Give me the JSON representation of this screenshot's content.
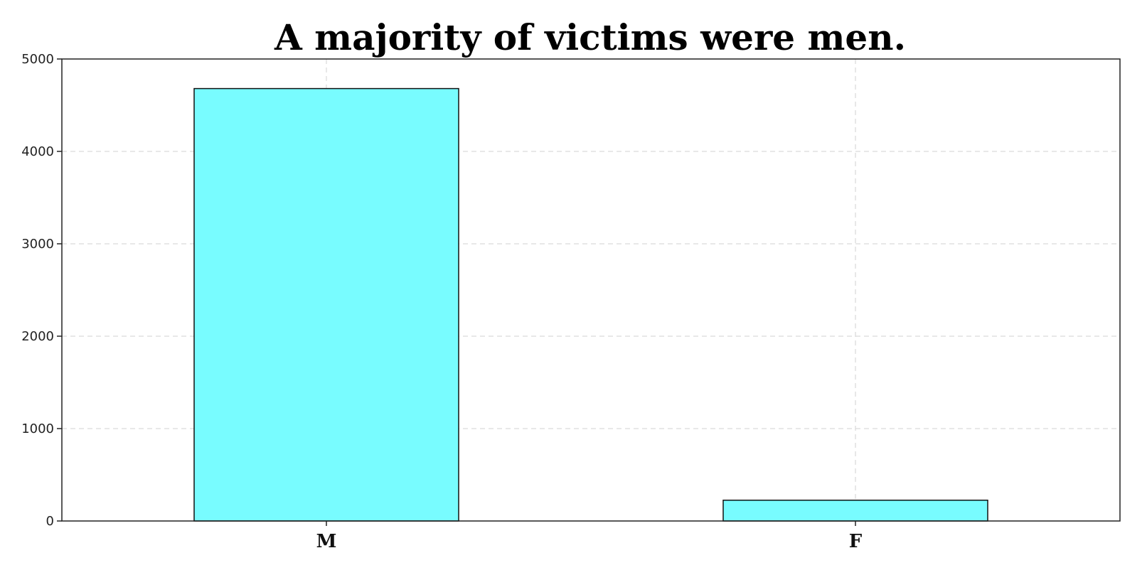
{
  "chart_data": {
    "type": "bar",
    "title": "A majority of victims were men.",
    "xlabel": "",
    "ylabel": "",
    "categories": [
      "M",
      "F"
    ],
    "values": [
      4680,
      225
    ],
    "ylim": [
      0,
      5000
    ],
    "yticks": [
      0,
      1000,
      2000,
      3000,
      4000,
      5000
    ],
    "ytick_labels": [
      "0",
      "1000",
      "2000",
      "3000",
      "4000",
      "5000"
    ],
    "grid": true,
    "bar_color": "#78fcff",
    "edge_color": "#111111"
  }
}
